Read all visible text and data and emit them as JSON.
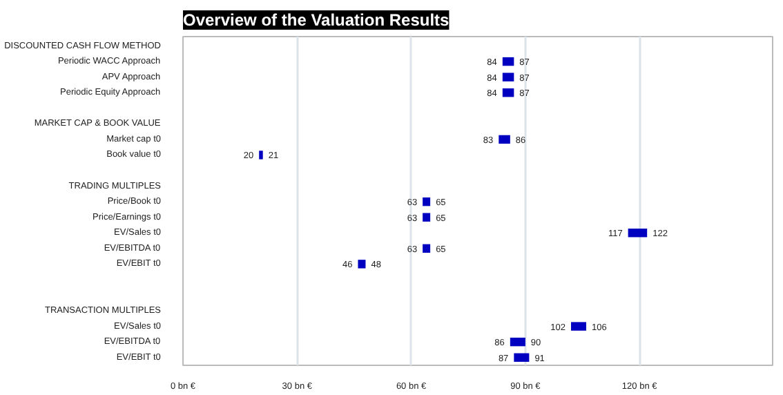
{
  "chart_data": {
    "type": "bar",
    "orientation": "horizontal",
    "title": "Overview of the Valuation Results",
    "categories": [
      "DISCOUNTED CASH FLOW METHOD",
      "Periodic WACC Approach",
      "APV Approach",
      "Periodic Equity Approach",
      null,
      "MARKET CAP & BOOK VALUE",
      "Market cap t0",
      "Book value t0",
      null,
      "TRADING MULTIPLES",
      "Price/Book t0",
      "Price/Earnings t0",
      "EV/Sales t0",
      "EV/EBITDA t0",
      "EV/EBIT t0",
      null,
      null,
      "TRANSACTION MULTIPLES",
      "EV/Sales t0",
      "EV/EBITDA t0",
      "EV/EBIT t0"
    ],
    "base": [
      null,
      84,
      84,
      84,
      null,
      null,
      83,
      20,
      null,
      null,
      63,
      63,
      117,
      63,
      46,
      null,
      null,
      null,
      102,
      86,
      87
    ],
    "values": [
      null,
      3,
      3,
      3,
      null,
      null,
      3,
      1,
      null,
      null,
      2,
      2,
      5,
      2,
      2,
      null,
      null,
      null,
      4,
      4,
      4
    ],
    "color": "#0000c0",
    "xlim": [
      0,
      155
    ],
    "xticks": [
      {
        "value": 0,
        "label": "0 bn €"
      },
      {
        "value": 30,
        "label": "30 bn €"
      },
      {
        "value": 60,
        "label": "60 bn €"
      },
      {
        "value": 90,
        "label": "90 bn €"
      },
      {
        "value": 120,
        "label": "120 bn €"
      }
    ],
    "grid": "x",
    "annotations": [
      {
        "text": "84",
        "x": 84,
        "y": "Periodic WACC Approach"
      },
      {
        "text": "87",
        "x": 87,
        "y": "Periodic WACC Approach"
      },
      {
        "text": "84",
        "x": 84,
        "y": "APV Approach"
      },
      {
        "text": "87",
        "x": 87,
        "y": "APV Approach"
      },
      {
        "text": "84",
        "x": 84,
        "y": "Periodic Equity Approach"
      },
      {
        "text": "87",
        "x": 87,
        "y": "Periodic Equity Approach"
      },
      {
        "text": "83",
        "x": 83,
        "y": "Market cap t0"
      },
      {
        "text": "86",
        "x": 86,
        "y": "Market cap t0"
      },
      {
        "text": "20",
        "x": 20,
        "y": "Book value t0"
      },
      {
        "text": "21",
        "x": 21,
        "y": "Book value t0"
      },
      {
        "text": "63",
        "x": 63,
        "y": "Price/Book t0"
      },
      {
        "text": "65",
        "x": 65,
        "y": "Price/Book t0"
      },
      {
        "text": "63",
        "x": 63,
        "y": "Price/Earnings t0"
      },
      {
        "text": "65",
        "x": 65,
        "y": "Price/Earnings t0"
      },
      {
        "text": "117",
        "x": 117,
        "y": "EV/Sales t0"
      },
      {
        "text": "122",
        "x": 122,
        "y": "EV/Sales t0"
      },
      {
        "text": "63",
        "x": 63,
        "y": "EV/EBITDA t0"
      },
      {
        "text": "65",
        "x": 65,
        "y": "EV/EBITDA t0"
      },
      {
        "text": "46",
        "x": 46,
        "y": "EV/EBIT t0"
      },
      {
        "text": "48",
        "x": 48,
        "y": "EV/EBIT t0"
      },
      "102",
      "106",
      "86",
      "90",
      "87",
      "91"
    ]
  }
}
